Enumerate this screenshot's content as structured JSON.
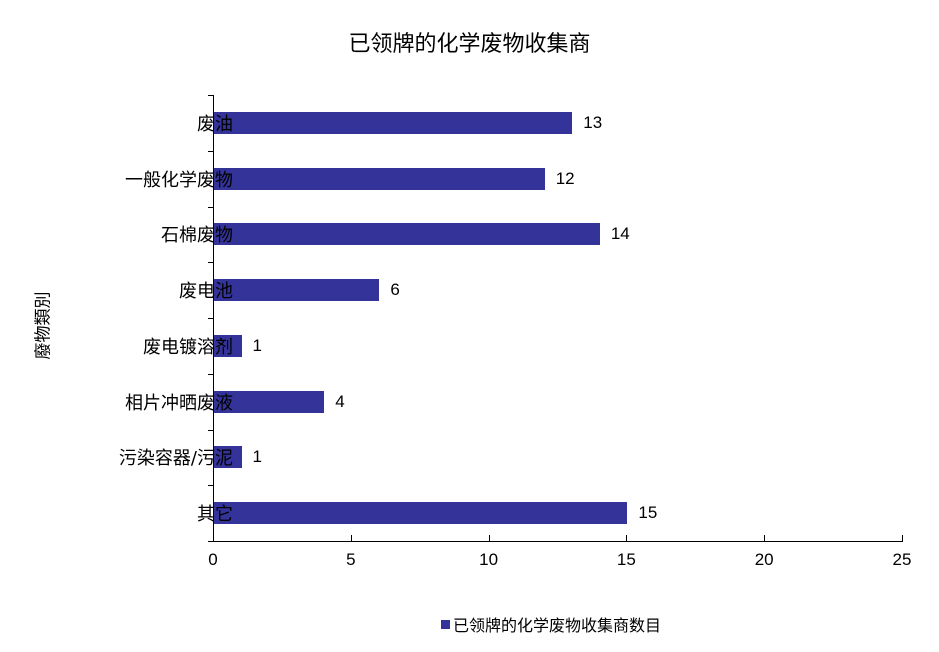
{
  "title": "已领牌的化学废物收集商",
  "y_axis_title": "廢物類別",
  "legend": {
    "label": "已领牌的化学废物收集商数目",
    "color": "#333399"
  },
  "x_ticks": [
    "0",
    "5",
    "10",
    "15",
    "20",
    "25"
  ],
  "categories": [
    {
      "label": "废油",
      "value": "13"
    },
    {
      "label": "一般化学废物",
      "value": "12"
    },
    {
      "label": "石棉废物",
      "value": "14"
    },
    {
      "label": "废电池",
      "value": "6"
    },
    {
      "label": "废电镀溶剂",
      "value": "1"
    },
    {
      "label": "相片冲晒废液",
      "value": "4"
    },
    {
      "label": "污染容器/污泥",
      "value": "1"
    },
    {
      "label": "其它",
      "value": "15"
    }
  ],
  "chart_data": {
    "type": "bar",
    "orientation": "horizontal",
    "title": "已领牌的化学废物收集商",
    "xlabel": "",
    "ylabel": "廢物類別",
    "categories": [
      "废油",
      "一般化学废物",
      "石棉废物",
      "废电池",
      "废电镀溶剂",
      "相片冲晒废液",
      "污染容器/污泥",
      "其它"
    ],
    "series": [
      {
        "name": "已领牌的化学废物收集商数目",
        "values": [
          13,
          12,
          14,
          6,
          1,
          4,
          1,
          15
        ],
        "color": "#333399"
      }
    ],
    "xlim": [
      0,
      25
    ],
    "x_ticks": [
      0,
      5,
      10,
      15,
      20,
      25
    ],
    "grid": false,
    "data_labels": true,
    "legend_position": "bottom"
  }
}
